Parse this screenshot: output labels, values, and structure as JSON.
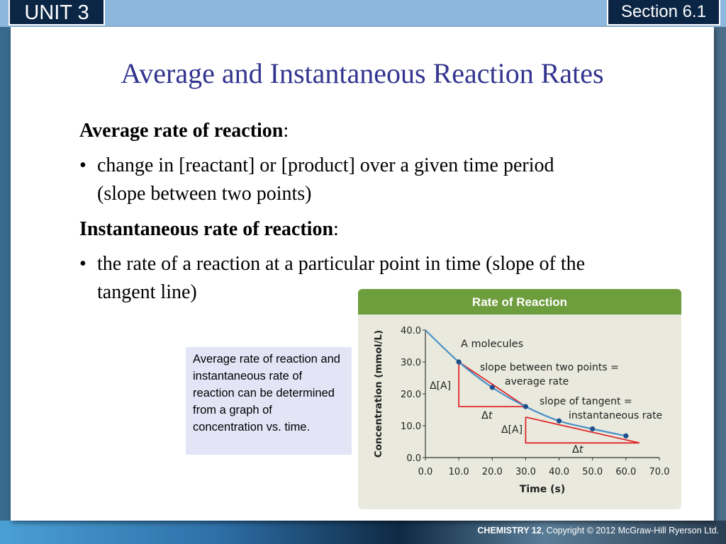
{
  "header": {
    "unit": "UNIT 3",
    "section": "Section 6.1"
  },
  "slide": {
    "title": "Average and Instantaneous Reaction Rates",
    "term1": "Average rate of reaction",
    "colon": ":",
    "bullet1": "change in [reactant] or [product] over a given time period (slope between two points)",
    "term2": "Instantaneous rate of reaction",
    "bullet2": "the rate of a reaction at a particular point in time (slope of the tangent line)",
    "bullet_glyph": "•"
  },
  "caption": "Average rate of reaction and instantaneous rate of reaction can be determined from a graph of concentration vs. time.",
  "footer": {
    "brand": "CHEMISTRY 12",
    "copyright": ", Copyright © 2012 McGraw-Hill Ryerson Ltd."
  },
  "colors": {
    "curve": "#4a90c8",
    "points": "#1f4e8c",
    "annotation": "#e0262a",
    "header": "#6d9d3c",
    "title": "#33348f"
  },
  "chart_data": {
    "type": "line",
    "title": "Rate of Reaction",
    "xlabel": "Time (s)",
    "ylabel": "Concentration (mmol/L)",
    "xlim": [
      0,
      70
    ],
    "ylim": [
      0,
      40
    ],
    "x_ticks": [
      "0.0",
      "10.0",
      "20.0",
      "30.0",
      "40.0",
      "50.0",
      "60.0",
      "70.0"
    ],
    "y_ticks": [
      "0.0",
      "10.0",
      "20.0",
      "30.0",
      "40.0"
    ],
    "series": [
      {
        "name": "A molecules",
        "x": [
          0,
          10,
          20,
          30,
          40,
          50,
          60
        ],
        "y": [
          40,
          30,
          22,
          16,
          11.5,
          9,
          6.8
        ]
      }
    ],
    "annotations": {
      "series_label": "A molecules",
      "average": "slope between two points = average rate",
      "average_line1": "slope between two points =",
      "average_line2": "average rate",
      "tangent_line1": "slope of tangent =",
      "tangent_line2": "instantaneous rate",
      "delta_a": "Δ[A]",
      "delta_t": "Δt",
      "delta_t_symbol": "Δ",
      "delta_t_var": "t"
    },
    "average_rate_segment": {
      "x": [
        10,
        30
      ],
      "y": [
        30,
        16
      ]
    },
    "tangent_segment": {
      "x": [
        30,
        64
      ],
      "y": [
        12.7,
        4.6
      ]
    }
  }
}
